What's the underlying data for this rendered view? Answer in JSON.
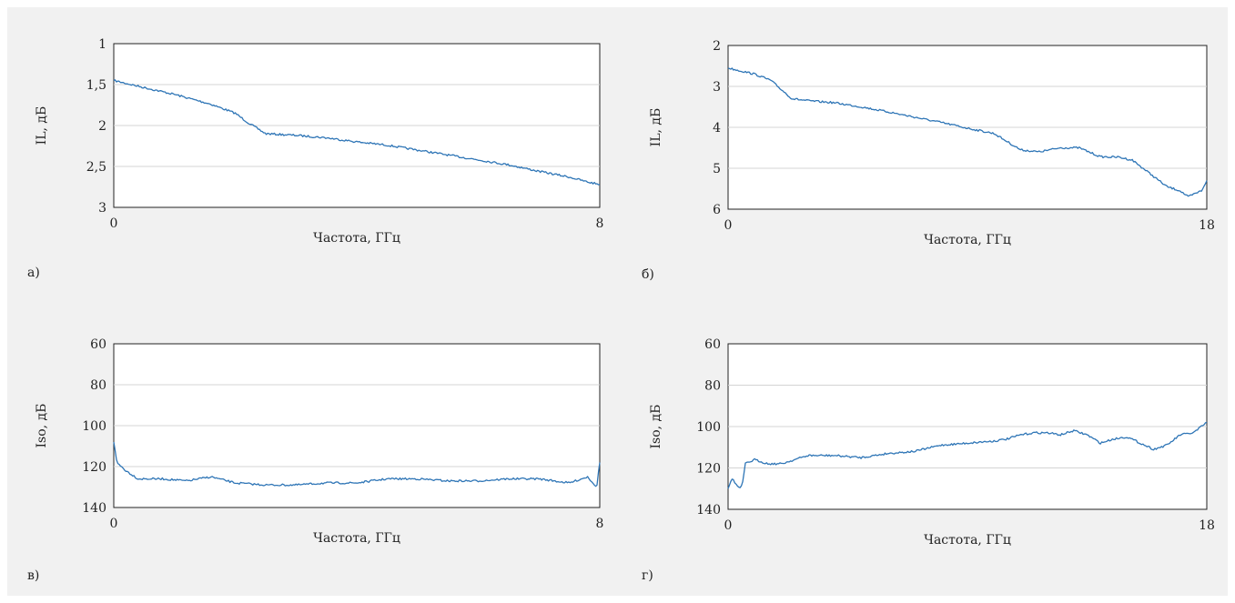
{
  "chart_data": [
    {
      "id": "a",
      "type": "line",
      "panel_label": "а)",
      "xlabel": "Частота, ГГц",
      "ylabel": "IL, дБ",
      "xlim": [
        0,
        8
      ],
      "xticks": [
        "0",
        "8"
      ],
      "ylim": [
        1,
        3
      ],
      "y_inverted": true,
      "yticks": [
        "1",
        "1,5",
        "2",
        "2,5",
        "3"
      ],
      "grid": true,
      "legend": "none",
      "series": [
        {
          "color": "#2e75b6",
          "x": [
            0,
            0.4,
            1.0,
            1.6,
            2.0,
            2.2,
            2.5,
            3.0,
            3.5,
            4.0,
            4.5,
            5.0,
            5.5,
            6.0,
            6.5,
            7.0,
            7.5,
            7.8,
            8.0
          ],
          "y": [
            1.45,
            1.52,
            1.62,
            1.74,
            1.85,
            1.96,
            2.1,
            2.12,
            2.15,
            2.2,
            2.24,
            2.3,
            2.36,
            2.42,
            2.48,
            2.56,
            2.63,
            2.69,
            2.72
          ]
        }
      ]
    },
    {
      "id": "b",
      "type": "line",
      "panel_label": "б)",
      "xlabel": "Частота, ГГц",
      "ylabel": "IL, дБ",
      "xlim": [
        0,
        18
      ],
      "xticks": [
        "0",
        "18"
      ],
      "ylim": [
        2,
        6
      ],
      "y_inverted": true,
      "yticks": [
        "2",
        "3",
        "4",
        "5",
        "6"
      ],
      "grid": true,
      "legend": "none",
      "series": [
        {
          "color": "#2e75b6",
          "x": [
            0,
            1.0,
            1.6,
            2.4,
            3.0,
            4.0,
            5.0,
            6.0,
            7.0,
            8.0,
            9.0,
            10.0,
            11.0,
            11.7,
            12.5,
            13.2,
            14.0,
            14.7,
            15.2,
            16.0,
            16.5,
            17.0,
            17.3,
            17.8,
            18.0
          ],
          "y": [
            2.55,
            2.7,
            2.85,
            3.3,
            3.35,
            3.4,
            3.5,
            3.62,
            3.75,
            3.88,
            4.02,
            4.15,
            4.55,
            4.6,
            4.5,
            4.5,
            4.72,
            4.73,
            4.8,
            5.2,
            5.45,
            5.55,
            5.7,
            5.55,
            5.3
          ]
        }
      ]
    },
    {
      "id": "c",
      "type": "line",
      "panel_label": "в)",
      "xlabel": "Частота, ГГц",
      "ylabel": "Iso, дБ",
      "xlim": [
        0,
        8
      ],
      "xticks": [
        "0",
        "8"
      ],
      "ylim": [
        60,
        140
      ],
      "y_inverted": true,
      "yticks": [
        "60",
        "80",
        "100",
        "120",
        "140"
      ],
      "grid": true,
      "legend": "none",
      "series": [
        {
          "color": "#2e75b6",
          "x": [
            0,
            0.05,
            0.2,
            0.4,
            0.8,
            1.2,
            1.6,
            2.0,
            2.5,
            3.0,
            3.5,
            4.0,
            4.5,
            5.0,
            5.5,
            6.0,
            6.5,
            7.0,
            7.5,
            7.8,
            7.95,
            8.0
          ],
          "y": [
            108,
            118,
            122,
            126,
            126,
            127,
            125,
            128,
            129,
            129,
            128,
            128,
            126,
            126,
            127,
            127,
            126,
            126,
            128,
            125,
            130,
            118
          ]
        }
      ]
    },
    {
      "id": "d",
      "type": "line",
      "panel_label": "г)",
      "xlabel": "Частота, ГГц",
      "ylabel": "Iso, дБ",
      "xlim": [
        0,
        18
      ],
      "xticks": [
        "0",
        "18"
      ],
      "ylim": [
        60,
        140
      ],
      "y_inverted": true,
      "yticks": [
        "60",
        "80",
        "100",
        "120",
        "140"
      ],
      "grid": true,
      "legend": "none",
      "series": [
        {
          "color": "#2e75b6",
          "x": [
            0,
            0.15,
            0.3,
            0.45,
            0.55,
            0.65,
            1.0,
            1.5,
            2.0,
            3.0,
            4.0,
            5.0,
            6.0,
            7.0,
            8.0,
            9.0,
            10.0,
            10.5,
            11.0,
            11.5,
            12.0,
            12.5,
            13.0,
            13.5,
            14.0,
            14.5,
            15.0,
            15.5,
            16.0,
            16.5,
            17.0,
            17.5,
            18.0
          ],
          "y": [
            130,
            125,
            128,
            130,
            127,
            118,
            116,
            118,
            118,
            114,
            114,
            115,
            113,
            112,
            109,
            108,
            107,
            106,
            104,
            103,
            103,
            104,
            102,
            104,
            108,
            106,
            105,
            108,
            111,
            109,
            104,
            103,
            98
          ]
        }
      ]
    }
  ]
}
